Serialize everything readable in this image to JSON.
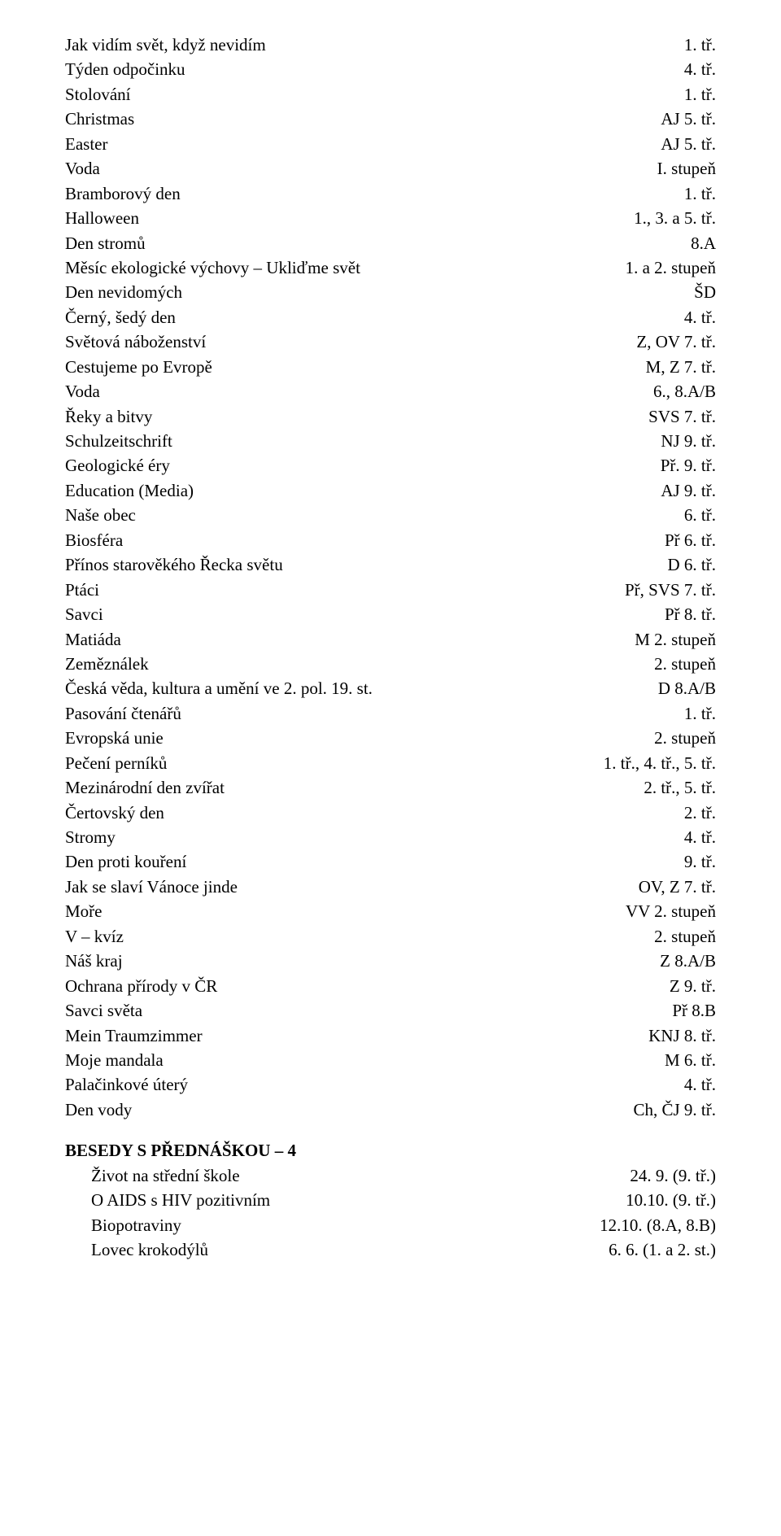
{
  "items": [
    {
      "l": "Jak vidím svět, když nevidím",
      "r": "1. tř."
    },
    {
      "l": "Týden odpočinku",
      "r": "4. tř."
    },
    {
      "l": "Stolování",
      "r": "1. tř."
    },
    {
      "l": "Christmas",
      "r": "AJ 5. tř."
    },
    {
      "l": "Easter",
      "r": "AJ 5. tř."
    },
    {
      "l": "Voda",
      "r": "I. stupeň"
    },
    {
      "l": "Bramborový den",
      "r": "1. tř."
    },
    {
      "l": "Halloween",
      "r": "1., 3. a 5. tř."
    },
    {
      "l": "Den stromů",
      "r": "8.A"
    },
    {
      "l": "Měsíc ekologické výchovy – Ukliďme svět",
      "r": "1. a 2. stupeň"
    },
    {
      "l": "Den nevidomých",
      "r": "ŠD"
    },
    {
      "l": "Černý, šedý den",
      "r": "4. tř."
    },
    {
      "l": "Světová náboženství",
      "r": "Z, OV 7. tř."
    },
    {
      "l": "Cestujeme po Evropě",
      "r": "M, Z 7. tř."
    },
    {
      "l": "Voda",
      "r": "6., 8.A/B"
    },
    {
      "l": "Řeky a bitvy",
      "r": "SVS 7. tř."
    },
    {
      "l": "Schulzeitschrift",
      "r": "NJ 9. tř."
    },
    {
      "l": "Geologické éry",
      "r": "Př. 9. tř."
    },
    {
      "l": "Education (Media)",
      "r": "AJ 9. tř."
    },
    {
      "l": "Naše obec",
      "r": "6. tř."
    },
    {
      "l": "Biosféra",
      "r": "Př 6. tř."
    },
    {
      "l": "Přínos starověkého Řecka světu",
      "r": "D 6. tř."
    },
    {
      "l": "Ptáci",
      "r": "Př, SVS 7. tř."
    },
    {
      "l": "Savci",
      "r": "Př 8. tř."
    },
    {
      "l": "Matiáda",
      "r": "M 2. stupeň"
    },
    {
      "l": "Zeměználek",
      "r": "2. stupeň"
    },
    {
      "l": "Česká věda, kultura a umění ve 2. pol. 19. st.",
      "r": "D 8.A/B"
    },
    {
      "l": "Pasování čtenářů",
      "r": "1. tř."
    },
    {
      "l": "Evropská unie",
      "r": "2. stupeň"
    },
    {
      "l": "Pečení perníků",
      "r": "1. tř., 4. tř., 5. tř."
    },
    {
      "l": "Mezinárodní den zvířat",
      "r": "2. tř., 5. tř."
    },
    {
      "l": "Čertovský den",
      "r": "2. tř."
    },
    {
      "l": "Stromy",
      "r": "4. tř."
    },
    {
      "l": "Den proti kouření",
      "r": "9. tř."
    },
    {
      "l": "Jak se slaví Vánoce jinde",
      "r": "OV, Z 7. tř."
    },
    {
      "l": "Moře",
      "r": "VV 2. stupeň"
    },
    {
      "l": "V – kvíz",
      "r": "2. stupeň"
    },
    {
      "l": "Náš kraj",
      "r": "Z 8.A/B"
    },
    {
      "l": "Ochrana přírody v ČR",
      "r": "Z 9. tř."
    },
    {
      "l": "Savci světa",
      "r": "Př 8.B"
    },
    {
      "l": "Mein Traumzimmer",
      "r": "KNJ 8. tř."
    },
    {
      "l": "Moje mandala",
      "r": "M 6. tř."
    },
    {
      "l": "Palačinkové úterý",
      "r": "4. tř."
    },
    {
      "l": "Den vody",
      "r": "Ch, ČJ 9. tř."
    }
  ],
  "section_title": "BESEDY S PŘEDNÁŠKOU – 4",
  "besedy": [
    {
      "l": "Život na střední škole",
      "r": "24.  9. (9. tř.)"
    },
    {
      "l": "O AIDS s HIV pozitivním",
      "r": "10.10. (9. tř.)"
    },
    {
      "l": "Biopotraviny",
      "r": "12.10. (8.A, 8.B)"
    },
    {
      "l": "Lovec krokodýlů",
      "r": "  6.  6. (1. a 2. st.)"
    }
  ]
}
